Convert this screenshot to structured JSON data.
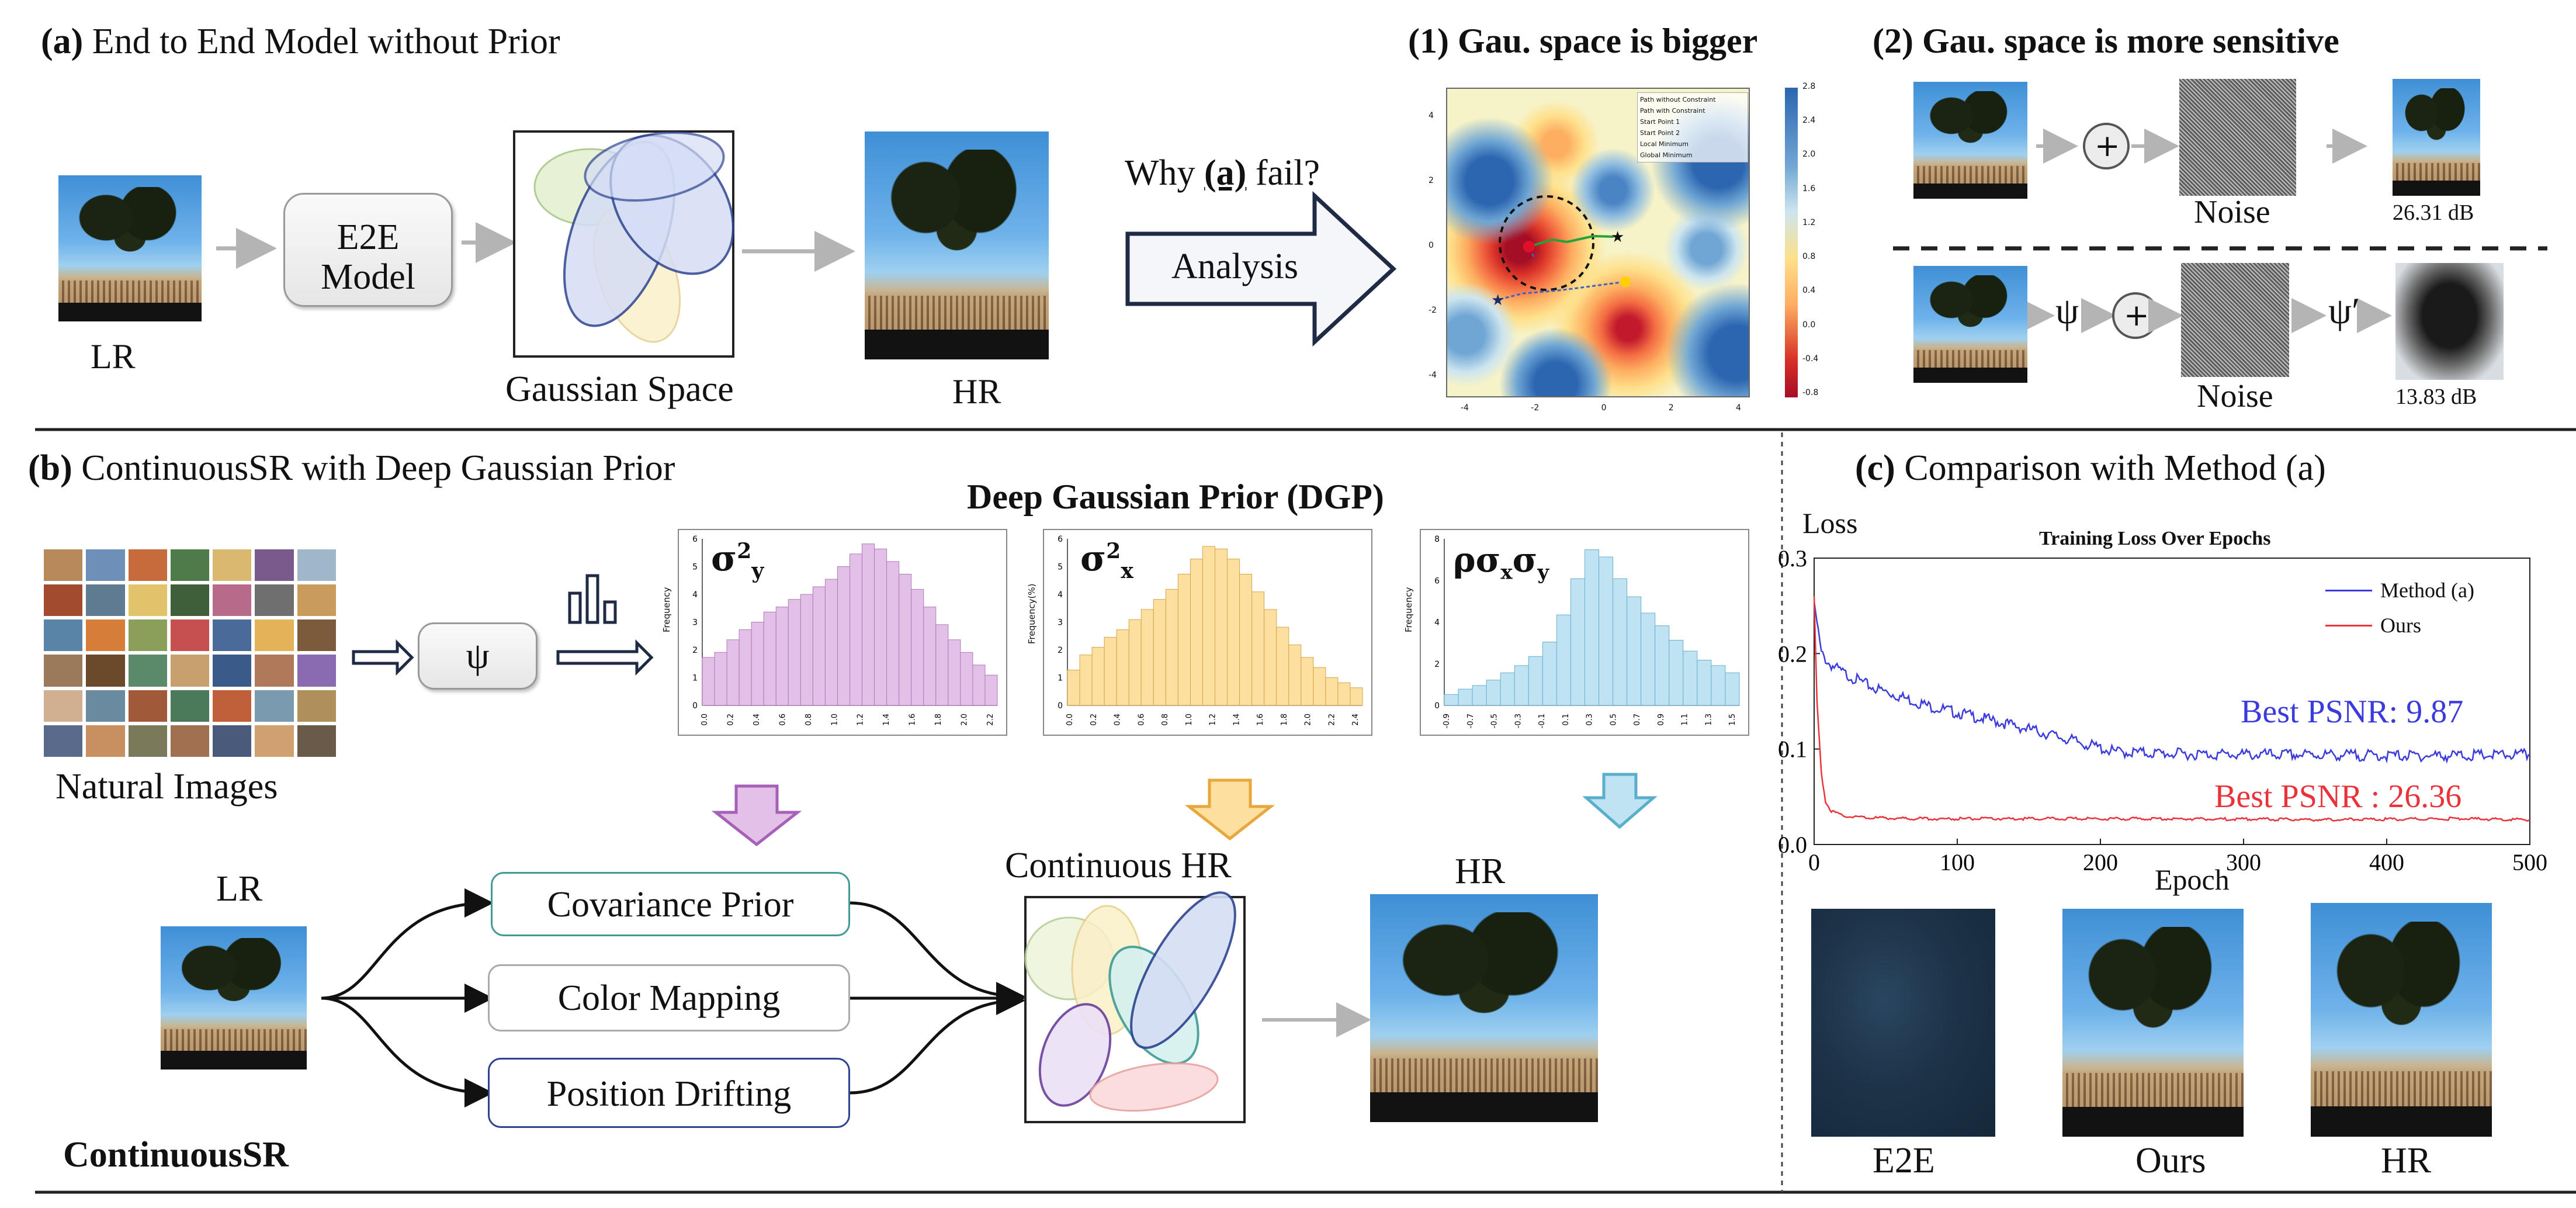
{
  "panel_a": {
    "title_bold": "(a)",
    "title_rest": "End to End Model without Prior",
    "lr": "LR",
    "model_l1": "E2E",
    "model_l2": "Model",
    "gaussian_space": "Gaussian Space",
    "hr": "HR",
    "why_pre": "Why ",
    "why_a": "(a)",
    "why_post": " fail?",
    "analysis": "Analysis"
  },
  "panel_1": {
    "title": "(1) Gau. space is bigger",
    "legend": [
      "Path without Constraint",
      "Path with Constraint",
      "Start Point 1",
      "Start Point 2",
      "Local Minimum",
      "Global Minimum"
    ],
    "colorbar_ticks": [
      "2.8",
      "2.4",
      "2.0",
      "1.6",
      "1.2",
      "0.8",
      "0.4",
      "0.0",
      "-0.4",
      "-0.8"
    ],
    "xticks": [
      "-4",
      "-2",
      "0",
      "2",
      "4"
    ],
    "yticks": [
      "4",
      "2",
      "0",
      "-2",
      "-4"
    ]
  },
  "panel_2": {
    "title": "(2) Gau. space is more sensitive",
    "noise": "Noise",
    "psnr_top": "26.31 dB",
    "psnr_bottom": "13.83 dB",
    "plus": "+",
    "psi": "ψ",
    "psi_prime": "ψ′"
  },
  "panel_b": {
    "title_bold": "(b)",
    "title_rest": "ContinuousSR with Deep Gaussian Prior",
    "dgp_title": "Deep Gaussian Prior (DGP)",
    "natural_images": "Natural Images",
    "psi": "ψ",
    "lr": "LR",
    "covariance": "Covariance Prior",
    "color": "Color Mapping",
    "position": "Position Drifting",
    "continuous_hr": "Continuous HR",
    "hr": "HR",
    "continuous_sr": "ContinuousSR",
    "colors": {
      "pink": "#e3c0e8",
      "orange": "#fde0a0",
      "blue": "#bfe3f2"
    }
  },
  "histograms": [
    {
      "label": "σ²y",
      "ylabel": "Frequency",
      "yticks": [
        "6",
        "5",
        "4",
        "3",
        "2",
        "1",
        "0"
      ],
      "xticks": [
        "0.0",
        "0.2",
        "0.4",
        "0.6",
        "0.8",
        "1.0",
        "1.2",
        "1.4",
        "1.6",
        "1.8",
        "2.0",
        "2.2"
      ],
      "values": [
        1.9,
        2.1,
        2.6,
        3.0,
        3.3,
        3.7,
        3.9,
        4.2,
        4.4,
        4.7,
        5.0,
        5.5,
        6.0,
        6.4,
        6.2,
        5.7,
        5.2,
        4.6,
        3.9,
        3.2,
        2.6,
        2.1,
        1.6,
        1.2
      ]
    },
    {
      "label": "σ²x",
      "ylabel": "Frequency(%)",
      "yticks": [
        "6",
        "5",
        "4",
        "3",
        "2",
        "1",
        "0"
      ],
      "xticks": [
        "0.0",
        "0.2",
        "0.4",
        "0.6",
        "0.8",
        "1.0",
        "1.2",
        "1.4",
        "1.6",
        "1.8",
        "2.0",
        "2.2",
        "2.4"
      ],
      "values": [
        1.4,
        2.0,
        2.3,
        2.7,
        3.0,
        3.4,
        3.8,
        4.2,
        4.6,
        5.2,
        5.8,
        6.3,
        6.2,
        5.8,
        5.2,
        4.5,
        3.8,
        3.1,
        2.4,
        1.9,
        1.5,
        1.1,
        0.9,
        0.7
      ]
    },
    {
      "label": "ρσxσy",
      "ylabel": "Frequency",
      "yticks": [
        "8",
        "6",
        "4",
        "2",
        "0"
      ],
      "xticks": [
        "-0.9",
        "-0.7",
        "-0.5",
        "-0.3",
        "-0.1",
        "0.1",
        "0.3",
        "0.5",
        "0.7",
        "0.9",
        "1.1",
        "1.3",
        "1.5"
      ],
      "values": [
        0.6,
        0.9,
        1.1,
        1.4,
        1.8,
        2.2,
        2.7,
        3.5,
        5.0,
        7.0,
        8.6,
        8.2,
        7.0,
        6.0,
        5.1,
        4.4,
        3.6,
        3.0,
        2.5,
        2.2,
        1.8
      ]
    }
  ],
  "panel_c": {
    "title_bold": "(c)",
    "title_rest": "Comparison with Method (a)",
    "e2e": "E2E",
    "ours": "Ours",
    "hr": "HR"
  },
  "chart_data": {
    "type": "line",
    "title": "Training Loss Over Epochs",
    "xlabel": "Epoch",
    "ylabel": "Loss",
    "xlim": [
      0,
      500
    ],
    "ylim": [
      0,
      0.3
    ],
    "xticks": [
      "0",
      "100",
      "200",
      "300",
      "400",
      "500"
    ],
    "yticks": [
      "0.0",
      "0.1",
      "0.2",
      "0.3"
    ],
    "grid": false,
    "legend": "top-right",
    "series": [
      {
        "name": "Method (a)",
        "color": "#3b3bdd",
        "x": [
          0,
          5,
          10,
          20,
          40,
          60,
          80,
          100,
          130,
          160,
          190,
          210,
          250,
          300,
          350,
          400,
          450,
          500
        ],
        "y": [
          0.255,
          0.2,
          0.19,
          0.18,
          0.165,
          0.155,
          0.145,
          0.138,
          0.128,
          0.117,
          0.105,
          0.097,
          0.095,
          0.094,
          0.094,
          0.093,
          0.093,
          0.094
        ]
      },
      {
        "name": "Ours",
        "color": "#e8333a",
        "x": [
          0,
          2,
          5,
          8,
          12,
          20,
          40,
          80,
          150,
          250,
          350,
          450,
          500
        ],
        "y": [
          0.26,
          0.15,
          0.075,
          0.045,
          0.035,
          0.03,
          0.028,
          0.027,
          0.027,
          0.027,
          0.026,
          0.027,
          0.026
        ]
      }
    ],
    "annotations": [
      "Best PSNR: 9.87",
      "Best PSNR : 26.36"
    ]
  }
}
